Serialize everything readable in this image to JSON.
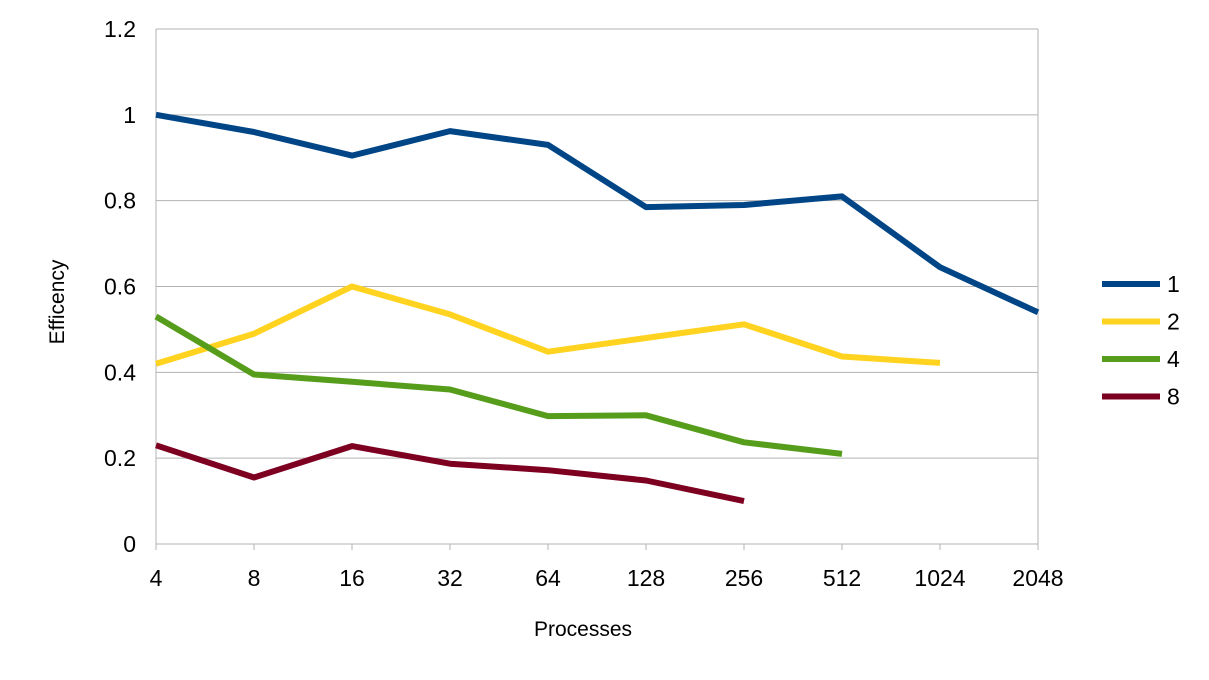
{
  "chart_data": {
    "type": "line",
    "title": "",
    "xlabel": "Processes",
    "ylabel": "Efficency",
    "categories": [
      "4",
      "8",
      "16",
      "32",
      "64",
      "128",
      "256",
      "512",
      "1024",
      "2048"
    ],
    "ylim": [
      0,
      1.2
    ],
    "yticks": [
      "0",
      "0.2",
      "0.4",
      "0.6",
      "0.8",
      "1",
      "1.2"
    ],
    "grid": true,
    "legend_position": "right",
    "series": [
      {
        "name": "1",
        "color": "#004586",
        "values": [
          1.0,
          0.96,
          0.905,
          0.962,
          0.93,
          0.785,
          0.79,
          0.81,
          0.645,
          0.54
        ]
      },
      {
        "name": "2",
        "color": "#ffd320",
        "values": [
          0.42,
          0.49,
          0.6,
          0.535,
          0.448,
          0.48,
          0.512,
          0.437,
          0.422,
          null
        ]
      },
      {
        "name": "4",
        "color": "#579d1c",
        "values": [
          0.53,
          0.395,
          0.378,
          0.36,
          0.298,
          0.3,
          0.237,
          0.21,
          null,
          null
        ]
      },
      {
        "name": "8",
        "color": "#7e0021",
        "values": [
          0.23,
          0.155,
          0.228,
          0.187,
          0.172,
          0.148,
          0.1,
          null,
          null,
          null
        ]
      }
    ]
  }
}
